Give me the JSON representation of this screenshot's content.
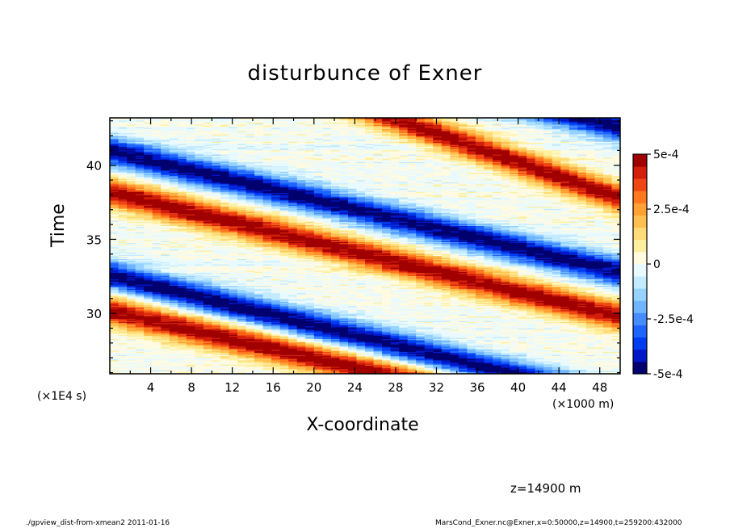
{
  "chart_data": {
    "type": "heatmap",
    "title": "disturbunce of Exner",
    "xlabel": "X-coordinate",
    "ylabel": "Time",
    "x_unit_label": "(×1000 m)",
    "y_unit_label": "(×1E4 s)",
    "xlim": [
      0,
      50
    ],
    "ylim": [
      25.92,
      43.2
    ],
    "x_ticks": [
      4,
      8,
      12,
      16,
      20,
      24,
      28,
      32,
      36,
      40,
      44,
      48
    ],
    "x_tick_labels": [
      "4",
      "8",
      "12",
      "16",
      "20",
      "24",
      "28",
      "32",
      "36",
      "40",
      "44",
      "48"
    ],
    "y_ticks": [
      30,
      35,
      40
    ],
    "y_tick_labels": [
      "30",
      "35",
      "40"
    ],
    "colorbar": {
      "range": [
        -0.0005,
        0.0005
      ],
      "ticks": [
        0.0005,
        0.00025,
        0,
        -0.00025,
        -0.0005
      ],
      "tick_labels": [
        "5e-4",
        "2.5e-4",
        "0",
        "-2.5e-4",
        "-5e-4"
      ],
      "colors": [
        "#00006e",
        "#0018c8",
        "#003cf0",
        "#1e64ff",
        "#468cff",
        "#6eb4ff",
        "#96d2ff",
        "#c3ebff",
        "#e8faff",
        "#fffae0",
        "#fff0a0",
        "#ffdc78",
        "#ffc050",
        "#ffa032",
        "#ff781e",
        "#f04614",
        "#d21e0a",
        "#a00000"
      ]
    },
    "features": [
      {
        "sign": -1,
        "amplitude": 0.0005,
        "x_start": 0,
        "y_start": 41.0,
        "x_end": 50,
        "y_end": 32.8
      },
      {
        "sign": 1,
        "amplitude": 0.0005,
        "x_start": 0,
        "y_start": 38.2,
        "x_end": 50,
        "y_end": 29.8
      },
      {
        "sign": -1,
        "amplitude": 0.0005,
        "x_start": 0,
        "y_start": 32.6,
        "x_end": 32,
        "y_end": 27.2
      },
      {
        "sign": 1,
        "amplitude": 0.0005,
        "x_start": 0,
        "y_start": 30.2,
        "x_end": 30,
        "y_end": 25.4
      },
      {
        "sign": 1,
        "amplitude": 0.0005,
        "x_start": 22,
        "y_start": 44.6,
        "x_end": 50,
        "y_end": 37.8
      },
      {
        "sign": -1,
        "amplitude": 0.0005,
        "x_start": 32,
        "y_start": 45.6,
        "x_end": 50,
        "y_end": 42.6
      }
    ],
    "annotation": "z=14900 m",
    "footer_left": "./gpview_dist-from-xmean2  2011-01-16",
    "footer_right": "MarsCond_Exner.nc@Exner,x=0:50000,z=14900,t=259200:432000"
  }
}
